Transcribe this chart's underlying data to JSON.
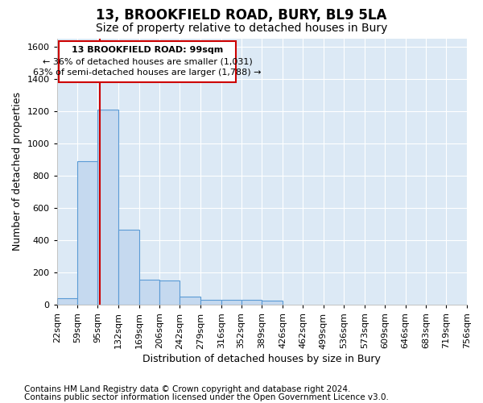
{
  "title": "13, BROOKFIELD ROAD, BURY, BL9 5LA",
  "subtitle": "Size of property relative to detached houses in Bury",
  "xlabel": "Distribution of detached houses by size in Bury",
  "ylabel": "Number of detached properties",
  "footer1": "Contains HM Land Registry data © Crown copyright and database right 2024.",
  "footer2": "Contains public sector information licensed under the Open Government Licence v3.0.",
  "annotation_line1": "13 BROOKFIELD ROAD: 99sqm",
  "annotation_line2": "← 36% of detached houses are smaller (1,031)",
  "annotation_line3": "63% of semi-detached houses are larger (1,788) →",
  "property_size_sqm": 99,
  "bin_edges": [
    22,
    59,
    95,
    132,
    169,
    206,
    242,
    279,
    316,
    352,
    389,
    426,
    462,
    499,
    536,
    573,
    609,
    646,
    683,
    719,
    756
  ],
  "bar_heights": [
    40,
    890,
    1210,
    465,
    155,
    150,
    50,
    30,
    30,
    30,
    25,
    0,
    0,
    0,
    0,
    0,
    0,
    0,
    0,
    0
  ],
  "bar_color": "#c5d9ef",
  "bar_edge_color": "#5b9bd5",
  "vline_color": "#cc0000",
  "vline_x": 99,
  "annotation_box_color": "#cc0000",
  "fig_bg_color": "#ffffff",
  "plot_bg_color": "#dce9f5",
  "ylim": [
    0,
    1650
  ],
  "yticks": [
    0,
    200,
    400,
    600,
    800,
    1000,
    1200,
    1400,
    1600
  ],
  "xlim": [
    22,
    756
  ],
  "xtick_labels": [
    "22sqm",
    "59sqm",
    "95sqm",
    "132sqm",
    "169sqm",
    "206sqm",
    "242sqm",
    "279sqm",
    "316sqm",
    "352sqm",
    "389sqm",
    "426sqm",
    "462sqm",
    "499sqm",
    "536sqm",
    "573sqm",
    "609sqm",
    "646sqm",
    "683sqm",
    "719sqm",
    "756sqm"
  ],
  "xtick_positions": [
    22,
    59,
    95,
    132,
    169,
    206,
    242,
    279,
    316,
    352,
    389,
    426,
    462,
    499,
    536,
    573,
    609,
    646,
    683,
    719,
    756
  ],
  "grid_color": "#ffffff",
  "title_fontsize": 12,
  "subtitle_fontsize": 10,
  "axis_label_fontsize": 9,
  "tick_fontsize": 8,
  "footer_fontsize": 7.5
}
